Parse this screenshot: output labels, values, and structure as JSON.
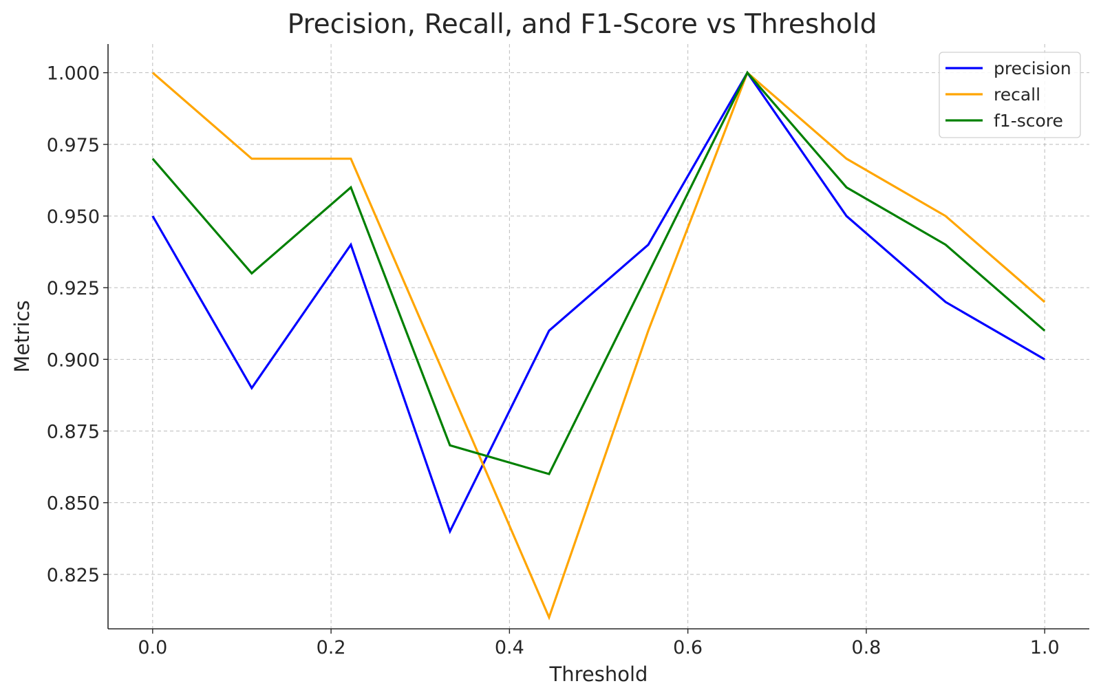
{
  "chart_data": {
    "type": "line",
    "title": "Precision, Recall, and F1-Score vs Threshold",
    "xlabel": "Threshold",
    "ylabel": "Metrics",
    "x": [
      0.0,
      0.1111,
      0.2222,
      0.3333,
      0.4444,
      0.5556,
      0.6667,
      0.7778,
      0.8889,
      1.0
    ],
    "xlim": [
      -0.05,
      1.05
    ],
    "ylim": [
      0.806,
      1.01
    ],
    "xticks": [
      0.0,
      0.2,
      0.4,
      0.6,
      0.8,
      1.0
    ],
    "xtick_labels": [
      "0.0",
      "0.2",
      "0.4",
      "0.6",
      "0.8",
      "1.0"
    ],
    "yticks": [
      0.825,
      0.85,
      0.875,
      0.9,
      0.925,
      0.95,
      0.975,
      1.0
    ],
    "ytick_labels": [
      "0.825",
      "0.850",
      "0.875",
      "0.900",
      "0.925",
      "0.950",
      "0.975",
      "1.000"
    ],
    "grid": true,
    "legend_position": "top-right",
    "series": [
      {
        "name": "precision",
        "color": "#0000ff",
        "values": [
          0.95,
          0.89,
          0.94,
          0.84,
          0.91,
          0.94,
          1.0,
          0.95,
          0.92,
          0.9
        ]
      },
      {
        "name": "recall",
        "color": "#ffa500",
        "values": [
          1.0,
          0.97,
          0.97,
          0.89,
          0.81,
          0.91,
          1.0,
          0.97,
          0.95,
          0.92
        ]
      },
      {
        "name": "f1-score",
        "color": "#008000",
        "values": [
          0.97,
          0.93,
          0.96,
          0.87,
          0.86,
          0.93,
          1.0,
          0.96,
          0.94,
          0.91
        ]
      }
    ]
  }
}
